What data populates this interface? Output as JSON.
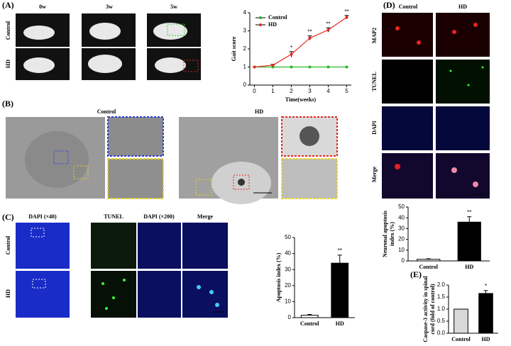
{
  "figure": {
    "A": {
      "label": "(A)",
      "columns": [
        "0w",
        "3w",
        "5w"
      ],
      "rows": [
        "Control",
        "HD"
      ]
    },
    "B": {
      "label": "(B)",
      "columns": [
        "Control",
        "HD"
      ]
    },
    "C": {
      "label": "(C)",
      "columns": [
        "DAPI (×40)",
        "TUNEL",
        "DAPI (×200)",
        "Merge"
      ],
      "rows": [
        "Control",
        "HD"
      ]
    },
    "D": {
      "label": "(D)",
      "columns": [
        "Control",
        "HD"
      ],
      "rows": [
        "MAP2",
        "TUNEL",
        "DAPI",
        "Merge"
      ]
    },
    "E": {
      "label": "(E)"
    }
  },
  "chart_data": [
    {
      "type": "line",
      "x": [
        0,
        1,
        2,
        3,
        4,
        5
      ],
      "xlim": [
        -0.25,
        5.25
      ],
      "xticks": [
        0,
        1,
        2,
        3,
        4,
        5
      ],
      "ylim": [
        0,
        4
      ],
      "yticks": [
        0,
        1,
        2,
        3,
        4
      ],
      "xlabel": "Time(weeks)",
      "ylabel": [
        "Gait score"
      ],
      "legend": "top-left",
      "series": [
        {
          "name": "Control",
          "color": "#27b827",
          "values": [
            1,
            1,
            1,
            1,
            1,
            1
          ],
          "errors": [
            0,
            0,
            0,
            0,
            0,
            0
          ]
        },
        {
          "name": "HD",
          "color": "#e8261d",
          "values": [
            1,
            1.1,
            1.7,
            2.6,
            3.05,
            3.75
          ],
          "errors": [
            0,
            0.05,
            0.15,
            0.12,
            0.12,
            0.1
          ]
        }
      ],
      "annotations": [
        {
          "x": 2,
          "text": "*"
        },
        {
          "x": 3,
          "text": "**"
        },
        {
          "x": 4,
          "text": "**"
        },
        {
          "x": 5,
          "text": "**"
        }
      ]
    },
    {
      "type": "bar",
      "categories": [
        "Control",
        "HD"
      ],
      "values": [
        1.5,
        34
      ],
      "errors": [
        0.5,
        5
      ],
      "colors": [
        "#ffffff",
        "#000000"
      ],
      "ylim": [
        0,
        50
      ],
      "yticks": [
        0,
        10,
        20,
        30,
        40,
        50
      ],
      "ylabel": [
        "Apoptosis index (%)"
      ],
      "annotations": [
        {
          "x": "HD",
          "text": "**"
        }
      ]
    },
    {
      "type": "bar",
      "categories": [
        "Control",
        "HD"
      ],
      "values": [
        1.5,
        36
      ],
      "errors": [
        0.5,
        5
      ],
      "colors": [
        "#ffffff",
        "#000000"
      ],
      "ylim": [
        0,
        50
      ],
      "yticks": [
        0,
        10,
        20,
        30,
        40,
        50
      ],
      "ylabel": [
        "Neuronal apoptosis",
        "index (%)"
      ],
      "annotations": [
        {
          "x": "HD",
          "text": "**"
        }
      ]
    },
    {
      "type": "bar",
      "categories": [
        "Control",
        "HD"
      ],
      "values": [
        1.0,
        1.65
      ],
      "errors": [
        0,
        0.12
      ],
      "colors": [
        "#d9d9d9",
        "#000000"
      ],
      "ylim": [
        0,
        2.0
      ],
      "yticks": [
        {
          "value": 0,
          "label": "0.0"
        },
        0.5,
        {
          "value": 1,
          "label": "1.0"
        },
        1.5,
        {
          "value": 2,
          "label": "2.0"
        }
      ],
      "ylabel": [
        "Caspase-3 activity in spinal",
        "cord (fold of control)"
      ],
      "annotations": [
        {
          "x": "HD",
          "text": "*"
        }
      ]
    }
  ]
}
